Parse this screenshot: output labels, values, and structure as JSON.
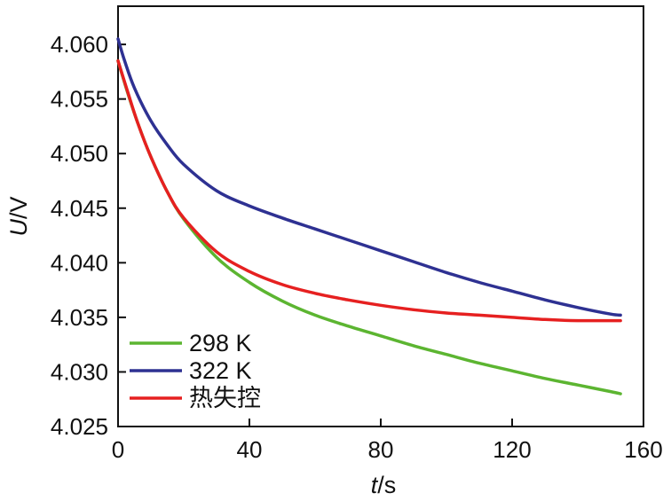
{
  "chart_data": {
    "type": "line",
    "xlabel_var": "t",
    "xlabel_unit": "/s",
    "ylabel_var": "U",
    "ylabel_unit": "/V",
    "xlim": [
      0,
      160
    ],
    "ylim": [
      4.025,
      4.0635
    ],
    "x_ticks": [
      0,
      40,
      80,
      120,
      160
    ],
    "x_tick_labels": [
      "0",
      "40",
      "80",
      "120",
      "160"
    ],
    "y_ticks": [
      4.025,
      4.03,
      4.035,
      4.04,
      4.045,
      4.05,
      4.055,
      4.06
    ],
    "y_tick_labels": [
      "4.025",
      "4.030",
      "4.035",
      "4.040",
      "4.045",
      "4.050",
      "4.055",
      "4.060"
    ],
    "legend_position": "bottom-left",
    "series": [
      {
        "name": "298 K",
        "color": "#5cb531",
        "x": [
          0,
          3,
          6,
          10,
          15,
          20,
          30,
          40,
          50,
          60,
          70,
          80,
          90,
          100,
          110,
          120,
          130,
          140,
          150,
          153
        ],
        "y": [
          4.0585,
          4.0555,
          4.0528,
          4.0497,
          4.0465,
          4.044,
          4.0405,
          4.0382,
          4.0365,
          4.0352,
          4.0342,
          4.0333,
          4.0324,
          4.0316,
          4.0308,
          4.0301,
          4.0294,
          4.0288,
          4.0282,
          4.028
        ]
      },
      {
        "name": "322 K",
        "color": "#2e3192",
        "x": [
          0,
          2,
          5,
          10,
          15,
          20,
          30,
          40,
          50,
          60,
          70,
          80,
          90,
          100,
          110,
          120,
          130,
          140,
          150,
          153
        ],
        "y": [
          4.0605,
          4.0585,
          4.056,
          4.053,
          4.0508,
          4.049,
          4.0466,
          4.0452,
          4.0441,
          4.0431,
          4.0421,
          4.0411,
          4.0401,
          4.0391,
          4.0382,
          4.0374,
          4.0366,
          4.0359,
          4.0353,
          4.0352
        ]
      },
      {
        "name": "热失控",
        "color": "#e62020",
        "x": [
          0,
          3,
          6,
          10,
          15,
          20,
          30,
          40,
          50,
          60,
          70,
          80,
          90,
          100,
          110,
          120,
          130,
          140,
          150,
          153
        ],
        "y": [
          4.0585,
          4.0556,
          4.0528,
          4.0497,
          4.0465,
          4.0441,
          4.041,
          4.0392,
          4.038,
          4.0372,
          4.0366,
          4.0361,
          4.0357,
          4.0354,
          4.0352,
          4.035,
          4.0348,
          4.0347,
          4.0347,
          4.0347
        ]
      }
    ]
  }
}
